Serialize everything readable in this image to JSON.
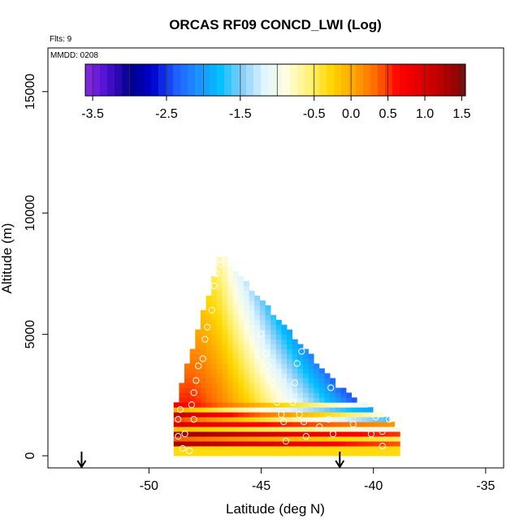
{
  "chart_data": {
    "type": "heatmap",
    "title": "ORCAS RF09 CONCD_LWI (Log)",
    "xlabel": "Latitude (deg N)",
    "ylabel": "Altitude (m)",
    "annotations": {
      "flights": "Flts: 9",
      "date": "MMDD: 0208"
    },
    "xlim": [
      -54.5,
      -34.2
    ],
    "ylim": [
      -500,
      16800
    ],
    "x_ticks": [
      -50,
      -45,
      -40,
      -35
    ],
    "x_tick_labels": [
      "-50",
      "-45",
      "-40",
      "-35"
    ],
    "y_ticks": [
      0,
      5000,
      10000,
      15000
    ],
    "y_tick_labels": [
      "0",
      "5000",
      "10000",
      "15000"
    ],
    "grid": false,
    "colorbar": {
      "range": [
        -3.6,
        1.55
      ],
      "ticks": [
        -3.5,
        -2.5,
        -1.5,
        -0.5,
        0.0,
        0.5,
        1.0,
        1.5
      ],
      "tick_labels": [
        "-3.5",
        "-2.5",
        "-1.5",
        "-0.5",
        "0.0",
        "0.5",
        "1.0",
        "1.5"
      ],
      "colors": [
        "#8a2be2",
        "#4b0fcf",
        "#00008b",
        "#0000cd",
        "#1e5bff",
        "#1e90ff",
        "#00bfff",
        "#87cefa",
        "#e0f6ff",
        "#fffde0",
        "#fff176",
        "#ffd700",
        "#ffa500",
        "#ff6a00",
        "#ff0000",
        "#e00000",
        "#b40000",
        "#7a0c0c"
      ],
      "placement": "inset-top"
    },
    "region": {
      "x_range": [
        -48.9,
        -39.0
      ],
      "triangle_apex": [
        -46.8,
        8200
      ],
      "triangle_right": [
        -41.6,
        2800
      ]
    },
    "profile_markers": [
      {
        "lat": -46.8,
        "alt": 7900
      },
      {
        "lat": -47.0,
        "alt": 7500
      },
      {
        "lat": -47.1,
        "alt": 7000
      },
      {
        "lat": -47.2,
        "alt": 6000
      },
      {
        "lat": -47.4,
        "alt": 5300
      },
      {
        "lat": -47.5,
        "alt": 4800
      },
      {
        "lat": -47.6,
        "alt": 4000
      },
      {
        "lat": -47.8,
        "alt": 3700
      },
      {
        "lat": -47.9,
        "alt": 3100
      },
      {
        "lat": -48.0,
        "alt": 2600
      },
      {
        "lat": -48.1,
        "alt": 2100
      },
      {
        "lat": -48.0,
        "alt": 1500
      },
      {
        "lat": -48.4,
        "alt": 900
      },
      {
        "lat": -48.7,
        "alt": 800
      },
      {
        "lat": -48.6,
        "alt": 1900
      },
      {
        "lat": -48.7,
        "alt": 1500
      },
      {
        "lat": -48.5,
        "alt": 300
      },
      {
        "lat": -48.2,
        "alt": 200
      },
      {
        "lat": -45.0,
        "alt": 5000
      },
      {
        "lat": -44.8,
        "alt": 4200
      },
      {
        "lat": -44.7,
        "alt": 3700
      },
      {
        "lat": -44.5,
        "alt": 3000
      },
      {
        "lat": -44.3,
        "alt": 2200
      },
      {
        "lat": -44.1,
        "alt": 1700
      },
      {
        "lat": -44.0,
        "alt": 1400
      },
      {
        "lat": -43.9,
        "alt": 600
      },
      {
        "lat": -43.2,
        "alt": 4300
      },
      {
        "lat": -43.4,
        "alt": 3800
      },
      {
        "lat": -43.5,
        "alt": 3000
      },
      {
        "lat": -43.6,
        "alt": 2200
      },
      {
        "lat": -43.3,
        "alt": 1700
      },
      {
        "lat": -43.1,
        "alt": 1400
      },
      {
        "lat": -43.0,
        "alt": 800
      },
      {
        "lat": -41.9,
        "alt": 2800
      },
      {
        "lat": -42.0,
        "alt": 1500
      },
      {
        "lat": -41.8,
        "alt": 900
      },
      {
        "lat": -40.9,
        "alt": 1300
      },
      {
        "lat": -40.1,
        "alt": 900
      },
      {
        "lat": -39.6,
        "alt": 1000
      },
      {
        "lat": -39.3,
        "alt": 1500
      },
      {
        "lat": -39.9,
        "alt": 1600
      },
      {
        "lat": -39.6,
        "alt": 400
      },
      {
        "lat": -42.4,
        "alt": 1200
      },
      {
        "lat": -46.8,
        "alt": 8050
      }
    ],
    "takeoff_landing_arrows": [
      -53.0,
      -41.5
    ]
  }
}
